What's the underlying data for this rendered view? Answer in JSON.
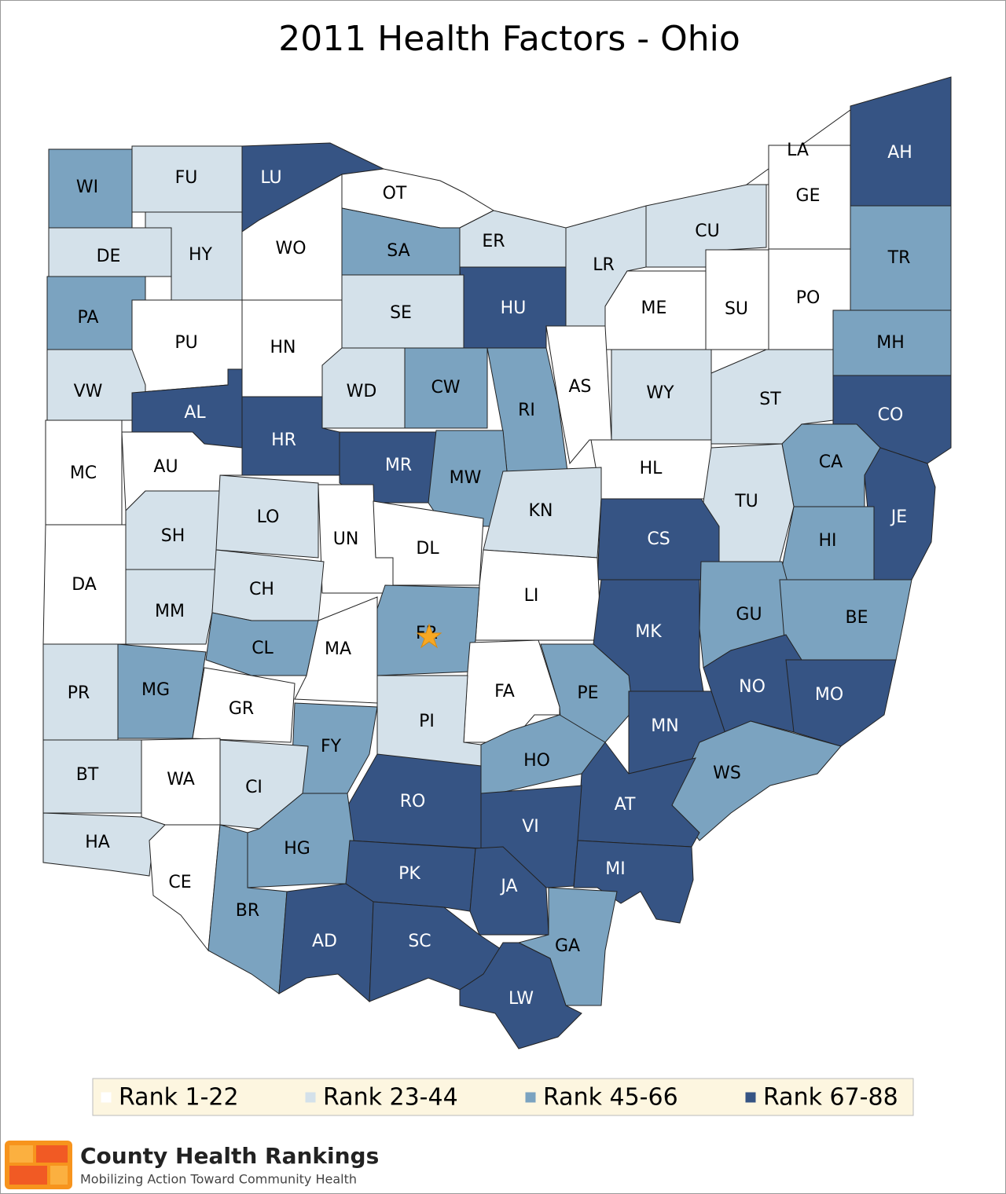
{
  "title": "2011 Health Factors - Ohio",
  "legend": [
    {
      "label": "Rank 1-22",
      "color": "#ffffff"
    },
    {
      "label": "Rank 23-44",
      "color": "#d4e1ea"
    },
    {
      "label": "Rank 45-66",
      "color": "#7ba3c0"
    },
    {
      "label": "Rank 67-88",
      "color": "#365484"
    }
  ],
  "counties": [
    {
      "label": "WI",
      "color": "#7ba3c0"
    },
    {
      "label": "FU",
      "color": "#d4e1ea"
    },
    {
      "label": "LU",
      "color": "#365484"
    },
    {
      "label": "OT",
      "color": "#ffffff"
    },
    {
      "label": "WO",
      "color": "#ffffff"
    },
    {
      "label": "DE",
      "color": "#d4e1ea"
    },
    {
      "label": "HY",
      "color": "#d4e1ea"
    },
    {
      "label": "SA",
      "color": "#7ba3c0"
    },
    {
      "label": "ER",
      "color": "#d4e1ea"
    },
    {
      "label": "HU",
      "color": "#365484"
    },
    {
      "label": "LR",
      "color": "#d4e1ea"
    },
    {
      "label": "CU",
      "color": "#d4e1ea"
    },
    {
      "label": "LA",
      "color": "#ffffff"
    },
    {
      "label": "GE",
      "color": "#ffffff"
    },
    {
      "label": "AH",
      "color": "#365484"
    },
    {
      "label": "TR",
      "color": "#7ba3c0"
    },
    {
      "label": "PO",
      "color": "#ffffff"
    },
    {
      "label": "SU",
      "color": "#ffffff"
    },
    {
      "label": "ME",
      "color": "#ffffff"
    },
    {
      "label": "MH",
      "color": "#7ba3c0"
    },
    {
      "label": "PA",
      "color": "#7ba3c0"
    },
    {
      "label": "PU",
      "color": "#ffffff"
    },
    {
      "label": "HN",
      "color": "#ffffff"
    },
    {
      "label": "SE",
      "color": "#d4e1ea"
    },
    {
      "label": "AS",
      "color": "#ffffff"
    },
    {
      "label": "WY",
      "color": "#d4e1ea"
    },
    {
      "label": "ST",
      "color": "#d4e1ea"
    },
    {
      "label": "CO",
      "color": "#365484"
    },
    {
      "label": "VW",
      "color": "#d4e1ea"
    },
    {
      "label": "AL",
      "color": "#365484"
    },
    {
      "label": "WD",
      "color": "#d4e1ea"
    },
    {
      "label": "CW",
      "color": "#7ba3c0"
    },
    {
      "label": "RI",
      "color": "#7ba3c0"
    },
    {
      "label": "HR",
      "color": "#365484"
    },
    {
      "label": "MR",
      "color": "#365484"
    },
    {
      "label": "MW",
      "color": "#7ba3c0"
    },
    {
      "label": "MC",
      "color": "#ffffff"
    },
    {
      "label": "AU",
      "color": "#ffffff"
    },
    {
      "label": "HL",
      "color": "#ffffff"
    },
    {
      "label": "CA",
      "color": "#7ba3c0"
    },
    {
      "label": "JE",
      "color": "#365484"
    },
    {
      "label": "KN",
      "color": "#d4e1ea"
    },
    {
      "label": "TU",
      "color": "#d4e1ea"
    },
    {
      "label": "CS",
      "color": "#365484"
    },
    {
      "label": "HI",
      "color": "#7ba3c0"
    },
    {
      "label": "SH",
      "color": "#d4e1ea"
    },
    {
      "label": "LO",
      "color": "#d4e1ea"
    },
    {
      "label": "UN",
      "color": "#ffffff"
    },
    {
      "label": "DL",
      "color": "#ffffff"
    },
    {
      "label": "LI",
      "color": "#ffffff"
    },
    {
      "label": "DA",
      "color": "#ffffff"
    },
    {
      "label": "MM",
      "color": "#d4e1ea"
    },
    {
      "label": "CH",
      "color": "#d4e1ea"
    },
    {
      "label": "FR",
      "color": "#7ba3c0"
    },
    {
      "label": "GU",
      "color": "#7ba3c0"
    },
    {
      "label": "BE",
      "color": "#7ba3c0"
    },
    {
      "label": "MK",
      "color": "#365484"
    },
    {
      "label": "CL",
      "color": "#7ba3c0"
    },
    {
      "label": "MA",
      "color": "#ffffff"
    },
    {
      "label": "PR",
      "color": "#d4e1ea"
    },
    {
      "label": "MG",
      "color": "#7ba3c0"
    },
    {
      "label": "GR",
      "color": "#ffffff"
    },
    {
      "label": "PE",
      "color": "#7ba3c0"
    },
    {
      "label": "FA",
      "color": "#ffffff"
    },
    {
      "label": "PI",
      "color": "#d4e1ea"
    },
    {
      "label": "NO",
      "color": "#365484"
    },
    {
      "label": "MO",
      "color": "#365484"
    },
    {
      "label": "MN",
      "color": "#365484"
    },
    {
      "label": "FY",
      "color": "#7ba3c0"
    },
    {
      "label": "BT",
      "color": "#d4e1ea"
    },
    {
      "label": "WA",
      "color": "#ffffff"
    },
    {
      "label": "CI",
      "color": "#d4e1ea"
    },
    {
      "label": "HO",
      "color": "#7ba3c0"
    },
    {
      "label": "WS",
      "color": "#7ba3c0"
    },
    {
      "label": "RO",
      "color": "#365484"
    },
    {
      "label": "AT",
      "color": "#365484"
    },
    {
      "label": "VI",
      "color": "#365484"
    },
    {
      "label": "HA",
      "color": "#d4e1ea"
    },
    {
      "label": "HG",
      "color": "#7ba3c0"
    },
    {
      "label": "CE",
      "color": "#ffffff"
    },
    {
      "label": "BR",
      "color": "#7ba3c0"
    },
    {
      "label": "PK",
      "color": "#365484"
    },
    {
      "label": "JA",
      "color": "#365484"
    },
    {
      "label": "MI",
      "color": "#365484"
    },
    {
      "label": "AD",
      "color": "#365484"
    },
    {
      "label": "SC",
      "color": "#365484"
    },
    {
      "label": "GA",
      "color": "#7ba3c0"
    },
    {
      "label": "LW",
      "color": "#365484"
    }
  ],
  "branding": {
    "name": "County Health Rankings",
    "tagline": "Mobilizing Action Toward Community Health"
  }
}
